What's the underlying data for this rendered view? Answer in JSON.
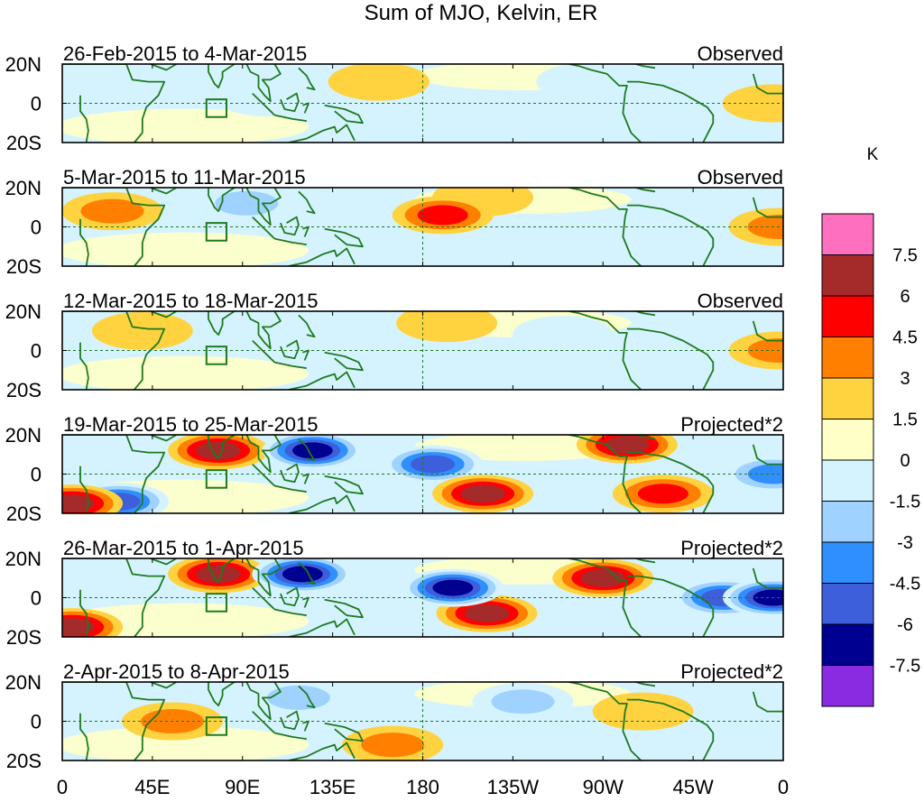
{
  "chart_data": {
    "type": "heatmap",
    "title": "Sum of MJO, Kelvin, ER",
    "units": "K",
    "x_axis": {
      "ticks": [
        "0",
        "45E",
        "90E",
        "135E",
        "180",
        "135W",
        "90W",
        "45W",
        "0"
      ],
      "tick_longitudes": [
        0,
        45,
        90,
        135,
        180,
        225,
        270,
        315,
        360
      ],
      "range": [
        0,
        360
      ]
    },
    "y_axis": {
      "ticks": [
        "20N",
        "0",
        "20S"
      ],
      "tick_latitudes": [
        20,
        0,
        -20
      ],
      "range": [
        -20,
        20
      ]
    },
    "colorbar": {
      "levels": [
        "7.5",
        "6",
        "4.5",
        "3",
        "1.5",
        "0",
        "-1.5",
        "-3",
        "-4.5",
        "-6",
        "-7.5"
      ],
      "colors": [
        "#ff6fbf",
        "#a52a2a",
        "#ff0000",
        "#ff7f00",
        "#ffd23f",
        "#ffffc8",
        "#d4f3ff",
        "#a0d2ff",
        "#2f8fff",
        "#3d5fd9",
        "#000090",
        "#8a2be2"
      ]
    },
    "panels": [
      {
        "period": "26-Feb-2015 to 4-Mar-2015",
        "label": "Observed",
        "anomalies": [
          {
            "lon": 102,
            "lat": 3,
            "value": -1.5
          },
          {
            "lon": 158,
            "lat": 11,
            "value": 1.5
          },
          {
            "lon": 262,
            "lat": 11,
            "value": -1.5
          },
          {
            "lon": 20,
            "lat": 5,
            "value": -1.5
          },
          {
            "lon": 355,
            "lat": 0,
            "value": 1.5
          }
        ]
      },
      {
        "period": "5-Mar-2015 to 11-Mar-2015",
        "label": "Observed",
        "anomalies": [
          {
            "lon": 25,
            "lat": 8,
            "value": 3
          },
          {
            "lon": 92,
            "lat": 12,
            "value": -3
          },
          {
            "lon": 100,
            "lat": 10,
            "value": -1.5
          },
          {
            "lon": 190,
            "lat": 6,
            "value": 4.5
          },
          {
            "lon": 210,
            "lat": 15,
            "value": 1.5
          },
          {
            "lon": 358,
            "lat": 0,
            "value": 3
          }
        ]
      },
      {
        "period": "12-Mar-2015 to 18-Mar-2015",
        "label": "Observed",
        "anomalies": [
          {
            "lon": 40,
            "lat": 10,
            "value": 1.5
          },
          {
            "lon": 192,
            "lat": 14,
            "value": 1.5
          },
          {
            "lon": 250,
            "lat": 8,
            "value": -1.5
          },
          {
            "lon": 198,
            "lat": -8,
            "value": -1.5
          },
          {
            "lon": 358,
            "lat": 0,
            "value": 3
          }
        ]
      },
      {
        "period": "19-Mar-2015 to 25-Mar-2015",
        "label": "Projected*2",
        "anomalies": [
          {
            "lon": 28,
            "lat": -14,
            "value": -6
          },
          {
            "lon": 78,
            "lat": 12,
            "value": 6
          },
          {
            "lon": 125,
            "lat": 12,
            "value": -7.5
          },
          {
            "lon": 185,
            "lat": 5,
            "value": -6
          },
          {
            "lon": 210,
            "lat": -10,
            "value": 6
          },
          {
            "lon": 282,
            "lat": 15,
            "value": 6
          },
          {
            "lon": 300,
            "lat": -10,
            "value": 4.5
          },
          {
            "lon": 355,
            "lat": 0,
            "value": -4.5
          },
          {
            "lon": 5,
            "lat": -15,
            "value": 6
          }
        ]
      },
      {
        "period": "26-Mar-2015 to 1-Apr-2015",
        "label": "Projected*2",
        "anomalies": [
          {
            "lon": 78,
            "lat": 12,
            "value": 6
          },
          {
            "lon": 120,
            "lat": 12,
            "value": -7.5
          },
          {
            "lon": 195,
            "lat": 5,
            "value": -7.5
          },
          {
            "lon": 212,
            "lat": -8,
            "value": 6
          },
          {
            "lon": 270,
            "lat": 10,
            "value": 6
          },
          {
            "lon": 330,
            "lat": 0,
            "value": -6
          },
          {
            "lon": 355,
            "lat": 0,
            "value": -7.5
          },
          {
            "lon": 5,
            "lat": -15,
            "value": 6
          }
        ]
      },
      {
        "period": "2-Apr-2015 to 8-Apr-2015",
        "label": "Projected*2",
        "anomalies": [
          {
            "lon": 55,
            "lat": 0,
            "value": 3
          },
          {
            "lon": 118,
            "lat": 12,
            "value": -3
          },
          {
            "lon": 165,
            "lat": -12,
            "value": 3
          },
          {
            "lon": 230,
            "lat": 10,
            "value": -3
          },
          {
            "lon": 290,
            "lat": 5,
            "value": 1.5
          },
          {
            "lon": 345,
            "lat": 10,
            "value": -1.5
          }
        ]
      }
    ],
    "region_box": {
      "lon_range": [
        72,
        82
      ],
      "lat_range": [
        -7,
        2
      ]
    },
    "reference_lines": {
      "lat": 0,
      "lon": 180,
      "style": "dashed"
    }
  }
}
